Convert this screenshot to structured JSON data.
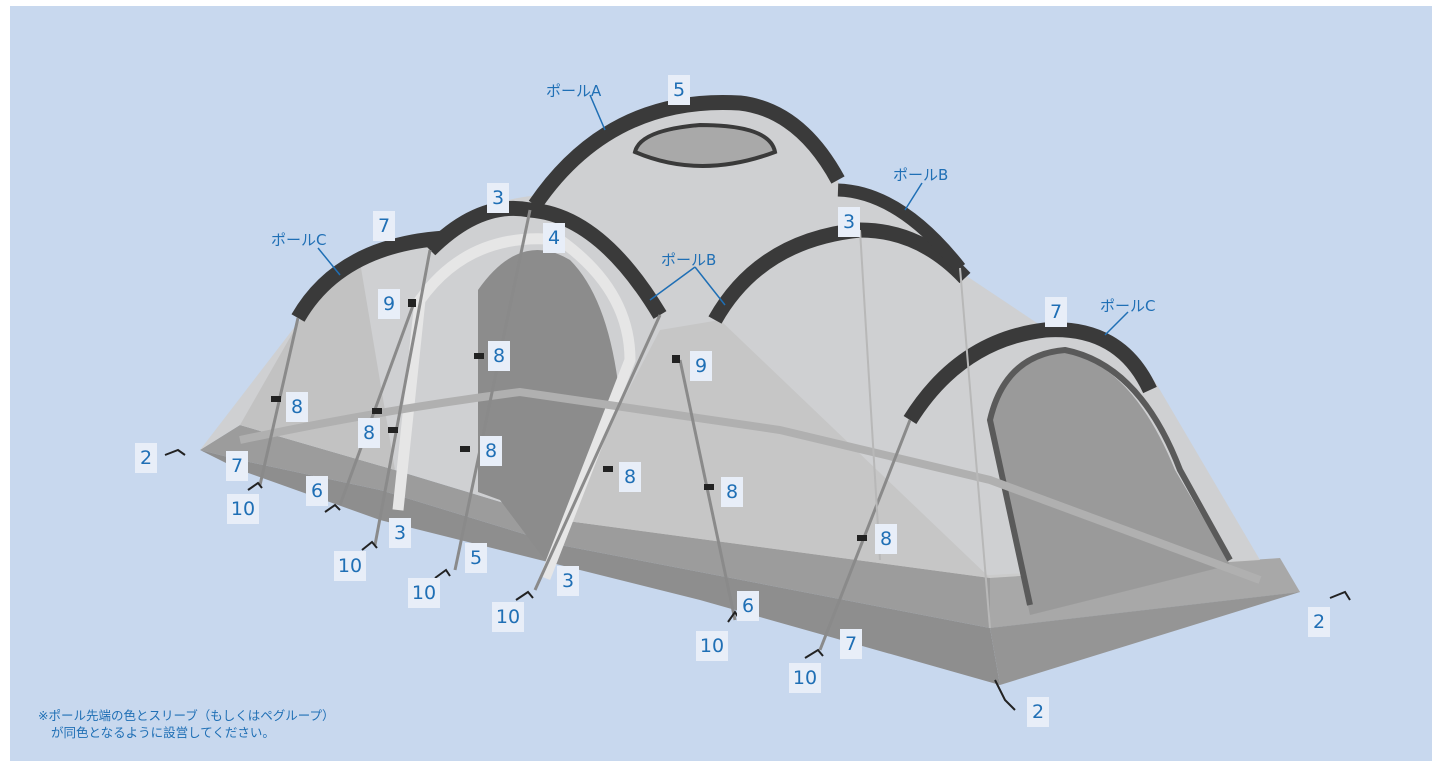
{
  "labels": {
    "pole_a": "ポールA",
    "pole_b": "ポールB",
    "pole_c": "ポールC"
  },
  "numbers": {
    "n2": "2",
    "n3": "3",
    "n4": "4",
    "n5": "5",
    "n6": "6",
    "n7": "7",
    "n8": "8",
    "n9": "9",
    "n10": "10"
  },
  "note": {
    "line1": "※ポール先端の色とスリーブ（もしくはペグループ）",
    "line2": "が同色となるように設営してください。"
  },
  "colors": {
    "background": "#c8d8ee",
    "label_box": "#e8eef8",
    "label_text": "#1f6fb5",
    "pole_dark": "#3a3a3a",
    "fabric_light": "#cfcfcf",
    "fabric_floor": "#9c9c9c"
  }
}
